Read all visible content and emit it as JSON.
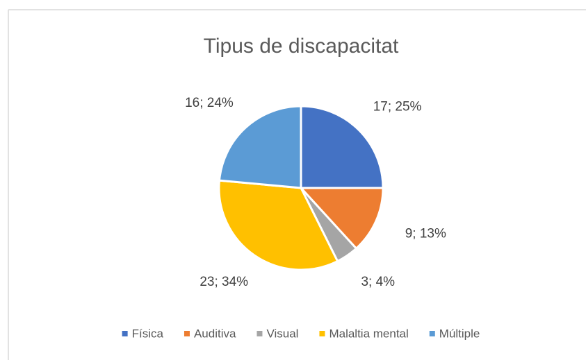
{
  "chart_data": {
    "type": "pie",
    "title": "Tipus de discapacitat",
    "categories": [
      "Física",
      "Auditiva",
      "Visual",
      "Malaltia mental",
      "Múltiple"
    ],
    "values": [
      17,
      9,
      3,
      23,
      16
    ],
    "value_labels": [
      "17; 25%",
      "9; 13%",
      "3; 4%",
      "23; 34%",
      "16; 24%"
    ],
    "colors": [
      "#4472c4",
      "#ed7d31",
      "#a5a5a5",
      "#ffc000",
      "#5b9bd5"
    ],
    "legend": "bottom"
  }
}
